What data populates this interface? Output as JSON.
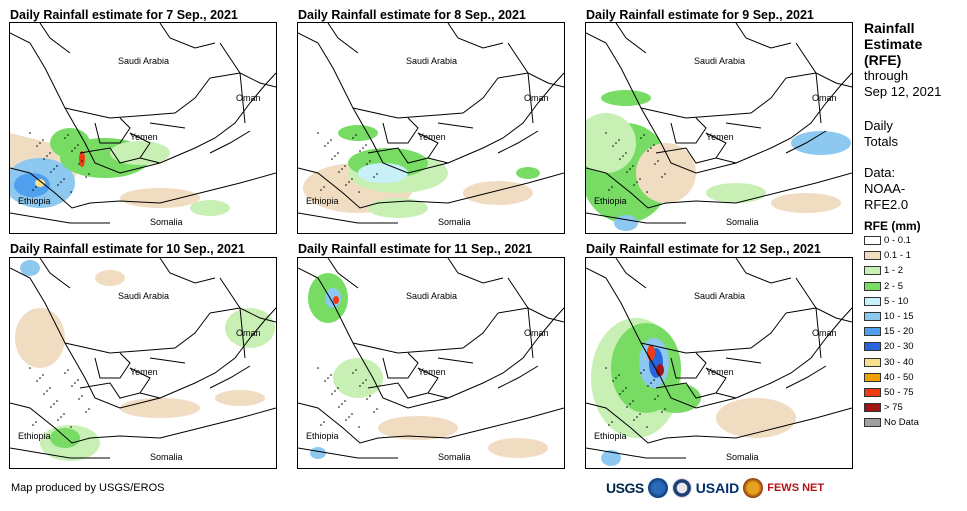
{
  "panels": [
    {
      "title": "Daily Rainfall estimate for 7 Sep., 2021"
    },
    {
      "title": "Daily Rainfall estimate for 8 Sep., 2021"
    },
    {
      "title": "Daily Rainfall estimate for 9 Sep., 2021"
    },
    {
      "title": "Daily Rainfall estimate for 10 Sep., 2021"
    },
    {
      "title": "Daily Rainfall estimate for 11 Sep., 2021"
    },
    {
      "title": "Daily Rainfall estimate for 12 Sep., 2021"
    }
  ],
  "map_labels": {
    "saudi": "Saudi Arabia",
    "oman": "Oman",
    "yemen": "Yemen",
    "ethiopia": "Ethiopia",
    "somalia": "Somalia"
  },
  "sidebar": {
    "head1": "Rainfall",
    "head2": "Estimate",
    "head3": "(RFE)",
    "through": "through",
    "date": "Sep 12, 2021",
    "daily1": "Daily",
    "daily2": "Totals",
    "data1": "Data:",
    "data2": "NOAA-",
    "data3": "RFE2.0"
  },
  "legend": {
    "title": "RFE (mm)",
    "items": [
      {
        "label": "0 - 0.1",
        "color": "#ffffff"
      },
      {
        "label": "0.1 - 1",
        "color": "#f0dcc0"
      },
      {
        "label": "1 - 2",
        "color": "#c8f0b4"
      },
      {
        "label": "2 - 5",
        "color": "#78dc64"
      },
      {
        "label": "5 - 10",
        "color": "#c8f0f8"
      },
      {
        "label": "10 - 15",
        "color": "#8cc8f0"
      },
      {
        "label": "15 - 20",
        "color": "#50a0f0"
      },
      {
        "label": "20 - 30",
        "color": "#2864dc"
      },
      {
        "label": "30 - 40",
        "color": "#f8e08c"
      },
      {
        "label": "40 - 50",
        "color": "#f0a000"
      },
      {
        "label": "50 - 75",
        "color": "#f03c14"
      },
      {
        "label": "> 75",
        "color": "#a01414"
      },
      {
        "label": "No Data",
        "color": "#a0a0a0"
      }
    ]
  },
  "footer": {
    "credit": "Map produced by USGS/EROS",
    "logo_usgs": "USGS",
    "logo_usaid": "USAID",
    "logo_fews": "FEWS NET"
  }
}
